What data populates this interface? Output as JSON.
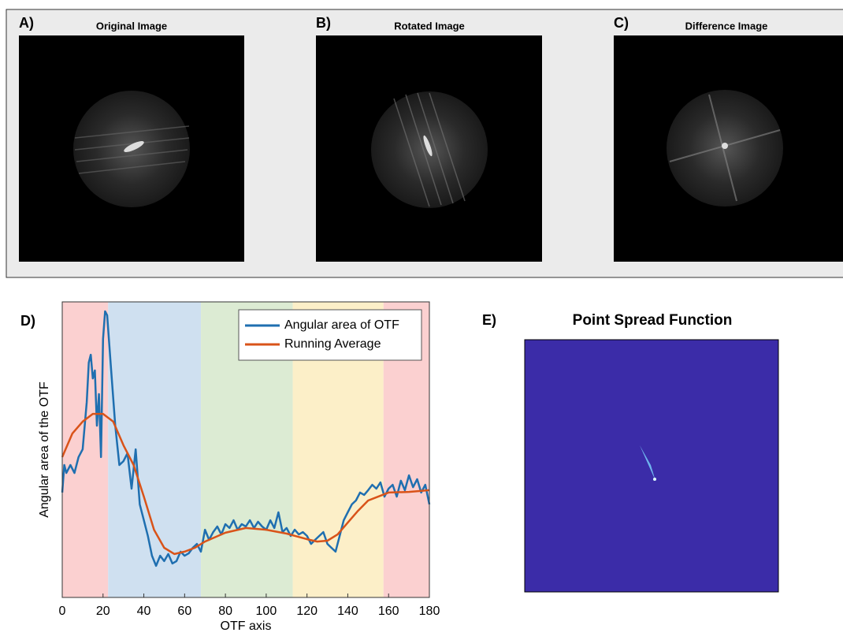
{
  "panels": [
    {
      "label": "A)",
      "title": "Original Image"
    },
    {
      "label": "B)",
      "title": "Rotated Image"
    },
    {
      "label": "C)",
      "title": "Difference Image"
    },
    {
      "label": "E)",
      "title": "Point Spread Function"
    }
  ],
  "chart_data": {
    "type": "line",
    "label": "D)",
    "x_label": "OTF axis",
    "y_label": "Angular area of the OTF",
    "xlim": [
      0,
      180
    ],
    "xticks": [
      0,
      20,
      40,
      60,
      80,
      100,
      120,
      140,
      160,
      180
    ],
    "ylim": [
      0,
      100
    ],
    "legend": "top-right",
    "regions": [
      {
        "start": 0,
        "end": 22.5,
        "color": "#fbd0d0"
      },
      {
        "start": 22.5,
        "end": 68,
        "color": "#cfe0f0"
      },
      {
        "start": 68,
        "end": 113,
        "color": "#dcebd3"
      },
      {
        "start": 113,
        "end": 157.5,
        "color": "#fcefc8"
      },
      {
        "start": 157.5,
        "end": 180,
        "color": "#fbd0d0"
      }
    ],
    "series": [
      {
        "name": "Angular area of OTF",
        "color": "#1f6fb0",
        "x": [
          0,
          1,
          2,
          4,
          6,
          8,
          10,
          12,
          13,
          14,
          15,
          16,
          17,
          18,
          19,
          20,
          21,
          22,
          24,
          26,
          28,
          30,
          32,
          34,
          36,
          38,
          40,
          42,
          44,
          46,
          48,
          50,
          52,
          54,
          56,
          58,
          60,
          62,
          64,
          66,
          68,
          70,
          72,
          74,
          76,
          78,
          80,
          82,
          84,
          86,
          88,
          90,
          92,
          94,
          96,
          98,
          100,
          102,
          104,
          106,
          108,
          110,
          112,
          114,
          116,
          118,
          120,
          122,
          124,
          126,
          128,
          130,
          132,
          134,
          136,
          138,
          140,
          142,
          144,
          146,
          148,
          150,
          152,
          154,
          156,
          158,
          160,
          162,
          164,
          166,
          168,
          170,
          172,
          174,
          176,
          178,
          180
        ],
        "values": [
          35.5,
          44.8,
          42.1,
          44.8,
          42.1,
          47.5,
          50.1,
          66.1,
          79.5,
          82.1,
          74.1,
          76.8,
          58.1,
          68.8,
          47.5,
          87.5,
          96.8,
          95.5,
          76.8,
          58.1,
          44.8,
          46.1,
          48.8,
          36.8,
          50.1,
          31.5,
          26.1,
          20.8,
          14.1,
          10.7,
          14.1,
          12.3,
          14.7,
          11.5,
          12.3,
          15.5,
          14.1,
          14.9,
          16.8,
          18.1,
          15.5,
          22.9,
          19.5,
          22.1,
          24.0,
          21.3,
          24.8,
          23.5,
          26.1,
          22.9,
          24.8,
          24.0,
          26.1,
          23.5,
          25.6,
          24.0,
          22.9,
          26.1,
          23.5,
          28.8,
          22.1,
          23.5,
          20.8,
          22.9,
          21.3,
          22.1,
          20.8,
          18.1,
          19.5,
          20.8,
          22.1,
          18.1,
          16.8,
          15.5,
          20.8,
          26.1,
          28.8,
          31.5,
          32.8,
          35.5,
          34.7,
          36.3,
          38.1,
          36.8,
          38.9,
          34.1,
          36.8,
          38.1,
          34.1,
          39.5,
          36.3,
          41.3,
          37.3,
          40.0,
          35.5,
          38.1,
          31.5
        ]
      },
      {
        "name": "Running Average",
        "color": "#d95319",
        "x": [
          0,
          5,
          10,
          15,
          20,
          25,
          30,
          35,
          40,
          45,
          50,
          55,
          60,
          65,
          70,
          80,
          90,
          100,
          110,
          120,
          125,
          130,
          135,
          140,
          145,
          150,
          160,
          170,
          180
        ],
        "values": [
          47.5,
          55.5,
          59.5,
          62.1,
          62.1,
          59.5,
          51.5,
          44.8,
          34.1,
          22.9,
          16.8,
          14.7,
          15.5,
          16.8,
          18.9,
          21.9,
          23.5,
          22.9,
          21.6,
          19.7,
          18.9,
          19.2,
          21.3,
          25.3,
          29.3,
          32.8,
          35.5,
          35.7,
          36.3
        ]
      }
    ]
  }
}
